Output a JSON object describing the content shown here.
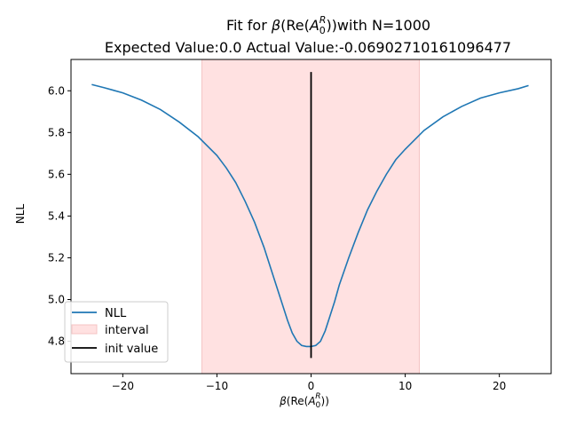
{
  "chart_data": {
    "type": "line",
    "title_prefix": "Fit for ",
    "title_suffix": "with N=1000",
    "subtitle": "Expected Value:0.0 Actual Value:-0.06902710161096477",
    "xlabel_parts": {
      "beta": "β",
      "re": "Re(",
      "a": "A",
      "sub": "0",
      "sup": "R",
      "close": "))",
      "open": "("
    },
    "ylabel": "NLL",
    "xlim": [
      -25.5,
      25.5
    ],
    "ylim": [
      4.645,
      6.15
    ],
    "xticks": [
      -20,
      -10,
      0,
      10,
      20
    ],
    "xtick_labels": [
      "−20",
      "−10",
      "0",
      "10",
      "20"
    ],
    "yticks": [
      4.8,
      5.0,
      5.2,
      5.4,
      5.6,
      5.8,
      6.0
    ],
    "ytick_labels": [
      "4.8",
      "5.0",
      "5.2",
      "5.4",
      "5.6",
      "5.8",
      "6.0"
    ],
    "legend_position": "lower-left",
    "series": [
      {
        "name": "NLL",
        "color": "#1f77b4",
        "x": [
          -23.3,
          -22,
          -20,
          -18,
          -16,
          -14,
          -12,
          -10,
          -9,
          -8,
          -7,
          -6,
          -5,
          -4,
          -3,
          -2.5,
          -2,
          -1.5,
          -1,
          -0.5,
          0,
          0.5,
          1,
          1.5,
          2,
          2.5,
          3,
          4,
          5,
          6,
          7,
          8,
          9,
          10,
          12,
          14,
          16,
          18,
          20,
          22,
          23.1
        ],
        "y": [
          6.03,
          6.015,
          5.99,
          5.955,
          5.91,
          5.85,
          5.78,
          5.69,
          5.63,
          5.56,
          5.47,
          5.37,
          5.25,
          5.11,
          4.97,
          4.9,
          4.84,
          4.8,
          4.78,
          4.775,
          4.775,
          4.78,
          4.8,
          4.85,
          4.92,
          4.99,
          5.07,
          5.2,
          5.32,
          5.43,
          5.52,
          5.6,
          5.67,
          5.72,
          5.81,
          5.875,
          5.925,
          5.965,
          5.99,
          6.01,
          6.025
        ]
      }
    ],
    "interval": {
      "name": "interval",
      "x0": -11.6,
      "x1": 11.5,
      "color": "#ffe1e1",
      "edge": "#f4c4c4"
    },
    "init_value": {
      "name": "init value",
      "x": 0,
      "y0": 4.72,
      "y1": 6.09,
      "color": "#000000"
    }
  }
}
